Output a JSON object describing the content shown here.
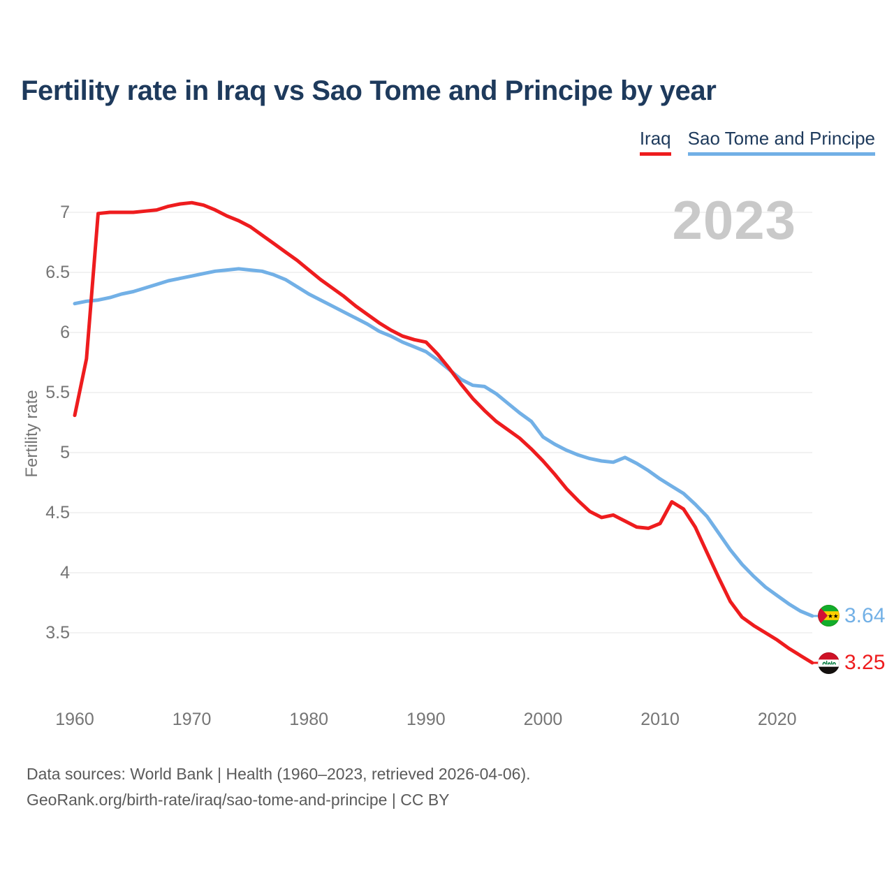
{
  "title": "Fertility rate in Iraq vs Sao Tome and Principe by year",
  "watermark": "2023",
  "legend": [
    {
      "label": "Iraq",
      "color": "#ee1c1e"
    },
    {
      "label": "Sao Tome and Principe",
      "color": "#72b0e6"
    }
  ],
  "y_axis": {
    "label": "Fertility rate",
    "ticks": [
      "7",
      "6.5",
      "6",
      "5.5",
      "5",
      "4.5",
      "4",
      "3.5"
    ]
  },
  "x_axis": {
    "ticks": [
      "1960",
      "1970",
      "1980",
      "1990",
      "2000",
      "2010",
      "2020"
    ]
  },
  "end_labels": [
    {
      "series": "Sao Tome and Principe",
      "value": "3.64",
      "flag": "sao-tome-and-principe",
      "color": "#72b0e6"
    },
    {
      "series": "Iraq",
      "value": "3.25",
      "flag": "iraq",
      "color": "#ee1c1e"
    }
  ],
  "footer": {
    "line1": "Data sources: World Bank | Health (1960–2023, retrieved 2026-04-06).",
    "line2": "GeoRank.org/birth-rate/iraq/sao-tome-and-principe | CC BY"
  },
  "chart_data": {
    "type": "line",
    "title": "Fertility rate in Iraq vs Sao Tome and Principe by year",
    "xlabel": "",
    "ylabel": "Fertility rate",
    "xlim": [
      1960,
      2023
    ],
    "ylim": [
      3.5,
      7
    ],
    "grid": "horizontal",
    "legend_position": "top-right",
    "yticks": [
      7,
      6.5,
      6,
      5.5,
      5,
      4.5,
      4,
      3.5
    ],
    "xticks": [
      1960,
      1970,
      1980,
      1990,
      2000,
      2010,
      2020
    ],
    "x": [
      1960,
      1961,
      1962,
      1963,
      1964,
      1965,
      1966,
      1967,
      1968,
      1969,
      1970,
      1971,
      1972,
      1973,
      1974,
      1975,
      1976,
      1977,
      1978,
      1979,
      1980,
      1981,
      1982,
      1983,
      1984,
      1985,
      1986,
      1987,
      1988,
      1989,
      1990,
      1991,
      1992,
      1993,
      1994,
      1995,
      1996,
      1997,
      1998,
      1999,
      2000,
      2001,
      2002,
      2003,
      2004,
      2005,
      2006,
      2007,
      2008,
      2009,
      2010,
      2011,
      2012,
      2013,
      2014,
      2015,
      2016,
      2017,
      2018,
      2019,
      2020,
      2021,
      2022,
      2023
    ],
    "series": [
      {
        "name": "Iraq",
        "color": "#ee1c1e",
        "values": [
          5.31,
          5.78,
          6.99,
          7.0,
          7.0,
          7.0,
          7.01,
          7.02,
          7.05,
          7.07,
          7.08,
          7.06,
          7.02,
          6.97,
          6.93,
          6.88,
          6.81,
          6.74,
          6.67,
          6.6,
          6.52,
          6.44,
          6.37,
          6.3,
          6.22,
          6.15,
          6.08,
          6.02,
          5.97,
          5.94,
          5.92,
          5.82,
          5.7,
          5.57,
          5.45,
          5.35,
          5.26,
          5.19,
          5.12,
          5.03,
          4.93,
          4.82,
          4.7,
          4.6,
          4.51,
          4.46,
          4.48,
          4.43,
          4.38,
          4.37,
          4.41,
          4.59,
          4.53,
          4.38,
          4.17,
          3.96,
          3.76,
          3.63,
          3.56,
          3.5,
          3.44,
          3.37,
          3.31,
          3.25
        ]
      },
      {
        "name": "Sao Tome and Principe",
        "color": "#72b0e6",
        "values": [
          6.24,
          6.26,
          6.27,
          6.29,
          6.32,
          6.34,
          6.37,
          6.4,
          6.43,
          6.45,
          6.47,
          6.49,
          6.51,
          6.52,
          6.53,
          6.52,
          6.51,
          6.48,
          6.44,
          6.38,
          6.32,
          6.27,
          6.22,
          6.17,
          6.12,
          6.07,
          6.01,
          5.97,
          5.92,
          5.88,
          5.84,
          5.77,
          5.69,
          5.61,
          5.56,
          5.55,
          5.49,
          5.41,
          5.33,
          5.26,
          5.13,
          5.07,
          5.02,
          4.98,
          4.95,
          4.93,
          4.92,
          4.96,
          4.91,
          4.85,
          4.78,
          4.72,
          4.66,
          4.57,
          4.47,
          4.33,
          4.19,
          4.07,
          3.97,
          3.88,
          3.81,
          3.74,
          3.68,
          3.64
        ]
      }
    ]
  }
}
